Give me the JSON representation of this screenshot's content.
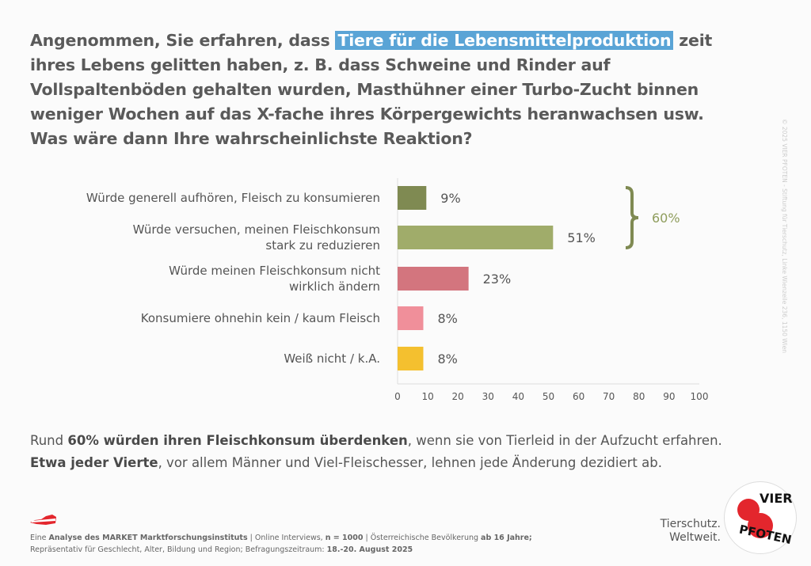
{
  "question": {
    "before": "Angenommen, Sie erfahren, dass ",
    "highlight": "Tiere für die Lebensmittelproduktion",
    "after": " zeit ihres Lebens gelitten haben, z. B. dass Schweine und Rinder auf Vollspaltenböden gehalten wurden, Masthühner einer Turbo-Zucht binnen weniger Wochen auf das X-fache ihres Körpergewichts heranwachsen usw. Was wäre dann Ihre wahrscheinlichste Reaktion?"
  },
  "chart_data": {
    "type": "bar",
    "orientation": "horizontal",
    "categories": [
      [
        "Würde generell aufhören, Fleisch zu konsumieren"
      ],
      [
        "Würde versuchen, meinen Fleischkonsum",
        "stark zu reduzieren"
      ],
      [
        "Würde meinen Fleischkonsum nicht",
        "wirklich ändern"
      ],
      [
        "Konsumiere ohnehin kein / kaum Fleisch"
      ],
      [
        "Weiß nicht / k.A."
      ]
    ],
    "values": [
      9,
      51,
      23,
      8,
      8
    ],
    "data_labels": [
      "9%",
      "51%",
      "23%",
      "8%",
      "8%"
    ],
    "colors": [
      "#7f8a52",
      "#a0ac6a",
      "#d3757e",
      "#f08f9a",
      "#f4c02f"
    ],
    "xlim": [
      0,
      100
    ],
    "xticks": [
      "0",
      "10",
      "20",
      "30",
      "40",
      "50",
      "60",
      "70",
      "80",
      "90",
      "100"
    ],
    "bracket": {
      "label": "60%",
      "spans": [
        0,
        1
      ],
      "color": "#7f8a52"
    },
    "grid": false
  },
  "summary": {
    "line1_pre": "Rund ",
    "line1_bold": "60% würden ihren Fleischkonsum überdenken",
    "line1_post": ", wenn sie von Tierleid in der Aufzucht erfahren.",
    "line2_bold": "Etwa jeder Vierte",
    "line2_post": ", vor allem Männer und Viel-Fleischesser, lehnen jede Änderung dezidiert ab."
  },
  "footer": {
    "l1a": "Eine ",
    "l1b": "Analyse des MARKET Marktforschungsinstituts",
    "l1c": " | Online Interviews, ",
    "l1d": "n = 1000",
    "l1e": " | Österreichische Bevölkerung ",
    "l1f": "ab 16 Jahre;",
    "l2a": "Repräsentativ für Geschlecht, Alter, Bildung und Region; Befragungszeitraum: ",
    "l2b": "18.-20. August 2025"
  },
  "copyright": "© 2025 VIER PFOTEN - Stiftung für Tierschutz, Linke Wienzeile 236, 1150 Wien",
  "tagline": {
    "line1": "Tierschutz.",
    "line2": "Weltweit."
  },
  "logo_text": "VIER PFOTEN"
}
